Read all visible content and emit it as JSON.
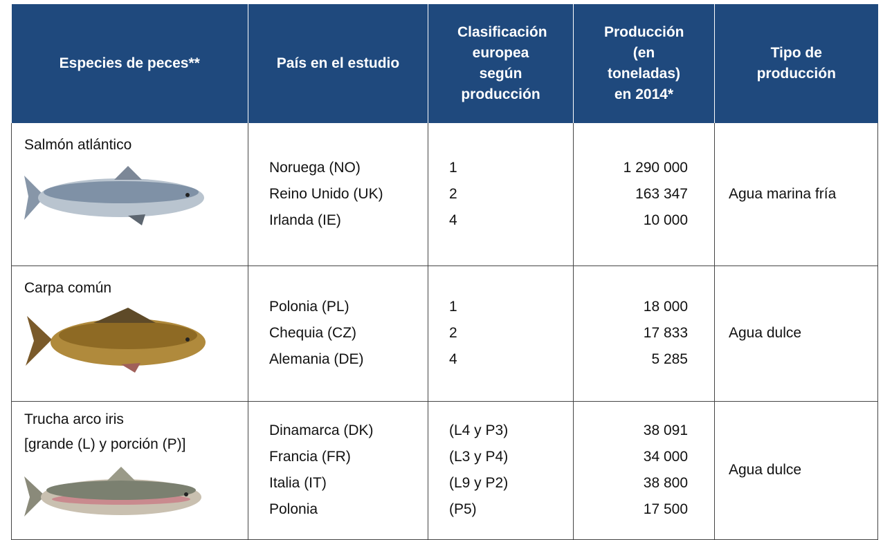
{
  "table": {
    "header": [
      "Especies de peces**",
      "País en el estudio",
      "Clasificación europea según producción",
      "Producción (en toneladas) en 2014*",
      "Tipo de producción"
    ],
    "rows": [
      {
        "species": [
          "Salmón atlántico"
        ],
        "countries": [
          "Noruega (NO)",
          "Reino Unido (UK)",
          "Irlanda (IE)"
        ],
        "ranks": [
          "1",
          "2",
          "4"
        ],
        "production": [
          "1 290 000",
          "163 347",
          "10 000"
        ],
        "type": "Agua marina fría"
      },
      {
        "species": [
          "Carpa común"
        ],
        "countries": [
          "Polonia (PL)",
          "Chequia (CZ)",
          "Alemania (DE)"
        ],
        "ranks": [
          "1",
          "2",
          "4"
        ],
        "production": [
          "18 000",
          "17 833",
          "5 285"
        ],
        "type": "Agua dulce"
      },
      {
        "species": [
          "Trucha arco iris",
          "[grande (L) y porción (P)]"
        ],
        "countries": [
          "Dinamarca (DK)",
          "Francia (FR)",
          "Italia (IT)",
          "Polonia"
        ],
        "ranks": [
          "(L4 y P3)",
          "(L3 y P4)",
          "(L9 y P2)",
          "(P5)"
        ],
        "production": [
          "38 091",
          "34 000",
          "38 800",
          "17 500"
        ],
        "type": "Agua dulce"
      }
    ]
  }
}
